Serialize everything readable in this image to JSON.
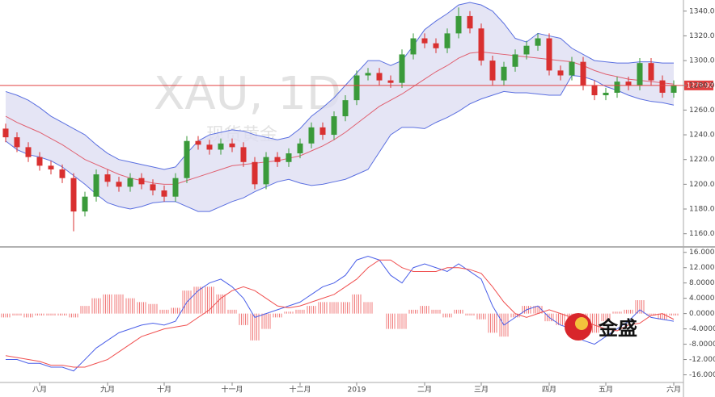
{
  "chart_data": [
    {
      "type": "candlestick",
      "title": "XAU, 1D",
      "subtitle": "现货黄金",
      "categories": [
        null,
        null,
        null,
        "八月",
        null,
        null,
        null,
        null,
        null,
        "九月",
        null,
        null,
        null,
        null,
        "十月",
        null,
        null,
        null,
        null,
        null,
        "十一月",
        null,
        null,
        null,
        null,
        null,
        "十二月",
        null,
        null,
        null,
        null,
        "2019",
        null,
        null,
        null,
        null,
        null,
        "二月",
        null,
        null,
        null,
        null,
        "三月",
        null,
        null,
        null,
        null,
        null,
        "四月",
        null,
        null,
        null,
        null,
        "五月",
        null,
        null,
        null,
        null,
        null,
        "六月"
      ],
      "open": [
        1245,
        1238,
        1230,
        1222,
        1215,
        1212,
        1205,
        1178,
        1190,
        1208,
        1202,
        1198,
        1205,
        1200,
        1195,
        1190,
        1205,
        1235,
        1232,
        1228,
        1233,
        1230,
        1218,
        1200,
        1222,
        1218,
        1225,
        1233,
        1246,
        1240,
        1255,
        1268,
        1288,
        1290,
        1284,
        1282,
        1305,
        1318,
        1314,
        1310,
        1322,
        1336,
        1326,
        1300,
        1284,
        1295,
        1305,
        1312,
        1318,
        1292,
        1288,
        1299,
        1280,
        1272,
        1274,
        1283,
        1280,
        1298,
        1284,
        1274
      ],
      "high": [
        1249,
        1242,
        1234,
        1226,
        1219,
        1216,
        1209,
        1194,
        1212,
        1212,
        1206,
        1209,
        1209,
        1204,
        1199,
        1209,
        1239,
        1239,
        1236,
        1237,
        1237,
        1234,
        1222,
        1226,
        1226,
        1229,
        1237,
        1250,
        1250,
        1259,
        1272,
        1292,
        1294,
        1294,
        1288,
        1309,
        1322,
        1322,
        1318,
        1326,
        1343,
        1340,
        1330,
        1304,
        1299,
        1309,
        1316,
        1322,
        1322,
        1296,
        1303,
        1303,
        1284,
        1278,
        1287,
        1287,
        1302,
        1302,
        1288,
        1284
      ],
      "low": [
        1234,
        1226,
        1218,
        1211,
        1208,
        1201,
        1162,
        1174,
        1186,
        1198,
        1194,
        1194,
        1196,
        1191,
        1186,
        1186,
        1201,
        1228,
        1224,
        1224,
        1226,
        1214,
        1196,
        1196,
        1214,
        1214,
        1221,
        1229,
        1236,
        1236,
        1251,
        1264,
        1284,
        1280,
        1278,
        1278,
        1301,
        1310,
        1306,
        1306,
        1318,
        1322,
        1296,
        1280,
        1280,
        1291,
        1301,
        1308,
        1288,
        1284,
        1284,
        1276,
        1268,
        1268,
        1270,
        1276,
        1276,
        1280,
        1270,
        1270
      ],
      "close": [
        1238,
        1230,
        1222,
        1215,
        1212,
        1205,
        1178,
        1190,
        1208,
        1202,
        1198,
        1205,
        1200,
        1195,
        1190,
        1205,
        1235,
        1232,
        1228,
        1233,
        1230,
        1218,
        1200,
        1222,
        1218,
        1225,
        1233,
        1246,
        1240,
        1255,
        1268,
        1288,
        1290,
        1284,
        1282,
        1305,
        1318,
        1314,
        1310,
        1322,
        1336,
        1326,
        1300,
        1284,
        1295,
        1305,
        1312,
        1318,
        1292,
        1288,
        1299,
        1280,
        1272,
        1274,
        1283,
        1280,
        1298,
        1284,
        1274,
        1280
      ],
      "up_color": "#3a9a3a",
      "down_color": "#d93030",
      "series": [
        {
          "color": "#5a6fe0",
          "values": [
            1275,
            1272,
            1268,
            1262,
            1255,
            1250,
            1245,
            1240,
            1232,
            1225,
            1220,
            1218,
            1216,
            1214,
            1212,
            1214,
            1225,
            1235,
            1240,
            1242,
            1244,
            1243,
            1240,
            1238,
            1236,
            1238,
            1245,
            1255,
            1262,
            1270,
            1280,
            1290,
            1300,
            1300,
            1296,
            1300,
            1312,
            1325,
            1332,
            1338,
            1345,
            1347,
            1345,
            1340,
            1330,
            1318,
            1315,
            1322,
            1320,
            1318,
            1310,
            1305,
            1300,
            1299,
            1298,
            1298,
            1299,
            1299,
            1298,
            1298
          ]
        },
        {
          "color": "#e06070",
          "values": [
            1255,
            1250,
            1246,
            1242,
            1237,
            1232,
            1226,
            1220,
            1216,
            1212,
            1208,
            1205,
            1203,
            1201,
            1200,
            1200,
            1203,
            1206,
            1209,
            1212,
            1215,
            1216,
            1217,
            1218,
            1219,
            1221,
            1223,
            1227,
            1231,
            1236,
            1242,
            1249,
            1256,
            1263,
            1268,
            1273,
            1279,
            1285,
            1291,
            1296,
            1302,
            1306,
            1307,
            1306,
            1305,
            1304,
            1303,
            1302,
            1301,
            1300,
            1299,
            1296,
            1292,
            1289,
            1287,
            1285,
            1284,
            1283,
            1282,
            1281
          ]
        },
        {
          "color": "#5a6fe0",
          "values": [
            1235,
            1228,
            1224,
            1222,
            1219,
            1214,
            1207,
            1200,
            1192,
            1185,
            1182,
            1180,
            1182,
            1185,
            1186,
            1186,
            1182,
            1178,
            1178,
            1182,
            1186,
            1189,
            1194,
            1198,
            1202,
            1204,
            1201,
            1199,
            1200,
            1202,
            1204,
            1208,
            1212,
            1226,
            1240,
            1246,
            1246,
            1245,
            1250,
            1254,
            1259,
            1265,
            1269,
            1272,
            1275,
            1274,
            1274,
            1273,
            1272,
            1272,
            1288,
            1287,
            1284,
            1279,
            1276,
            1272,
            1269,
            1267,
            1266,
            1264
          ]
        }
      ],
      "band_fill": "#dcdcf2",
      "last_price": 1279.92,
      "last_color": "#e04040",
      "ylim": [
        1150,
        1349
      ],
      "yticks": [
        {
          "value": 1160,
          "label": "1160.00"
        },
        {
          "value": 1180,
          "label": "1180.00"
        },
        {
          "value": 1200,
          "label": "1200.00"
        },
        {
          "value": 1220,
          "label": "1220.00"
        },
        {
          "value": 1240,
          "label": "1240.00"
        },
        {
          "value": 1260,
          "label": "1260.00"
        },
        {
          "value": 1280,
          "label": "1280.00"
        },
        {
          "value": 1300,
          "label": "1300.00"
        },
        {
          "value": 1320,
          "label": "1320.00"
        },
        {
          "value": 1340,
          "label": "1340.00"
        }
      ]
    },
    {
      "type": "macd",
      "series": [
        {
          "kind": "bar",
          "color": "#f07a7a",
          "values": [
            -1,
            -0.5,
            -1,
            -0.5,
            -0.5,
            -0.5,
            -1,
            2,
            4,
            5,
            5,
            4,
            3,
            2.5,
            1,
            1.5,
            6,
            7,
            7,
            5,
            1,
            -3,
            -7,
            -4,
            -1,
            0.5,
            1,
            2,
            3,
            3,
            3,
            5,
            3,
            0,
            -4,
            -4,
            1,
            2,
            1,
            -1,
            1,
            -0.5,
            -1.5,
            -5,
            -6,
            -1,
            2,
            2,
            -2,
            -3,
            -3,
            -5,
            -5,
            -2,
            0.5,
            1,
            3.5,
            -0.5,
            -1.5,
            -0.5
          ]
        },
        {
          "kind": "line",
          "color": "#4a5fe8",
          "values": [
            -12,
            -12,
            -13,
            -13,
            -14,
            -14,
            -15,
            -12,
            -9,
            -7,
            -5,
            -4,
            -3,
            -2.5,
            -3,
            -2,
            3,
            6,
            8,
            9,
            7,
            4,
            -1,
            0,
            1,
            2,
            3,
            5,
            7,
            8,
            10,
            14,
            15,
            14,
            10,
            8,
            12,
            13,
            12,
            11,
            13,
            11,
            9,
            2,
            -3,
            -1,
            1,
            2,
            -1,
            -3,
            -4,
            -7,
            -8,
            -6,
            -4,
            -2,
            1,
            -1,
            -1.5,
            -2
          ]
        },
        {
          "kind": "line",
          "color": "#f05050",
          "values": [
            -11,
            -11.5,
            -12,
            -12.5,
            -13.5,
            -13.5,
            -14,
            -14,
            -13,
            -12,
            -10,
            -8,
            -6,
            -5,
            -4,
            -3.5,
            -3,
            -1,
            1,
            4,
            6,
            7,
            6,
            4,
            2,
            1.5,
            2,
            3,
            4,
            5,
            7,
            9,
            12,
            14,
            14,
            12,
            11,
            11,
            11,
            12,
            12,
            11.5,
            10.5,
            7,
            3,
            0,
            -1,
            0,
            1,
            0,
            -1,
            -2,
            -3,
            -4,
            -4.5,
            -3,
            -2.5,
            -0.5,
            0,
            -1.5
          ]
        }
      ],
      "ylim": [
        -18,
        17
      ],
      "yticks": [
        {
          "value": 16,
          "label": "16.0000"
        },
        {
          "value": 12,
          "label": "12.0000"
        },
        {
          "value": 8,
          "label": "8.0000"
        },
        {
          "value": 4,
          "label": "4.0000"
        },
        {
          "value": 0,
          "label": "0.0000"
        },
        {
          "value": -4,
          "label": "-4.0000"
        },
        {
          "value": -8,
          "label": "-8.0000"
        },
        {
          "value": -12,
          "label": "-12.0000"
        },
        {
          "value": -16,
          "label": "-16.0000"
        }
      ]
    }
  ],
  "logo": "金盛"
}
